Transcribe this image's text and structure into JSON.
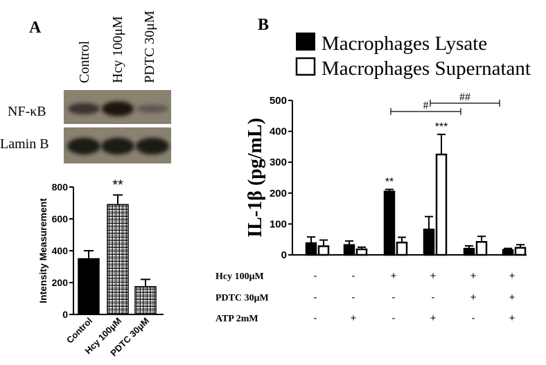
{
  "panel_a": {
    "label": "A",
    "blot": {
      "lane_labels": [
        "Control",
        "Hcy 100μM",
        "PDTC 30μM"
      ],
      "row_labels": [
        "NF-κB",
        "Lamin B"
      ],
      "nfkb_band_intensity": [
        0.55,
        0.85,
        0.25
      ],
      "laminb_band_intensity": [
        0.9,
        0.9,
        0.9
      ]
    },
    "chart_data": {
      "type": "bar",
      "categories": [
        "Control",
        "Hcy 100μM",
        "PDTC 30μM"
      ],
      "values": [
        350,
        690,
        175
      ],
      "errors": [
        50,
        60,
        45
      ],
      "ylabel": "Intensity Measurement",
      "ylim": [
        0,
        800
      ],
      "yticks": [
        0,
        200,
        400,
        600,
        800
      ],
      "annotations": [
        {
          "category": "Hcy 100μM",
          "text": "**"
        }
      ],
      "bar_colors": [
        "#000000",
        "hatch",
        "hatch"
      ]
    }
  },
  "panel_b": {
    "label": "B",
    "chart_data": {
      "type": "bar",
      "groups": 6,
      "series": [
        {
          "name": "Macrophages Lysate",
          "color": "#000000",
          "values": [
            38,
            32,
            205,
            82,
            20,
            16
          ],
          "errors": [
            20,
            13,
            7,
            42,
            9,
            5
          ]
        },
        {
          "name": "Macrophages Supernatant",
          "color": "#ffffff",
          "values": [
            28,
            18,
            40,
            325,
            42,
            23
          ],
          "errors": [
            20,
            7,
            17,
            65,
            18,
            10
          ]
        }
      ],
      "ylabel": "IL-1β (pg/mL)",
      "ylim": [
        0,
        500
      ],
      "yticks": [
        0,
        100,
        200,
        300,
        400,
        500
      ],
      "legend_position": "top",
      "star_annotations": [
        {
          "group": 3,
          "series": 0,
          "text": "**"
        },
        {
          "group": 4,
          "series": 1,
          "text": "***"
        }
      ],
      "brackets": [
        {
          "from_group": 3,
          "to_group": 5,
          "text": "#"
        },
        {
          "from_group": 4,
          "to_group": 6,
          "text": "##"
        }
      ],
      "conditions": [
        {
          "label": "Hcy 100μM",
          "values": [
            "-",
            "-",
            "+",
            "+",
            "+",
            "+"
          ]
        },
        {
          "label": "PDTC 30μM",
          "values": [
            "-",
            "-",
            "-",
            "-",
            "+",
            "+"
          ]
        },
        {
          "label": "ATP 2mM",
          "values": [
            "-",
            "+",
            "-",
            "+",
            "-",
            "+"
          ]
        }
      ]
    }
  }
}
